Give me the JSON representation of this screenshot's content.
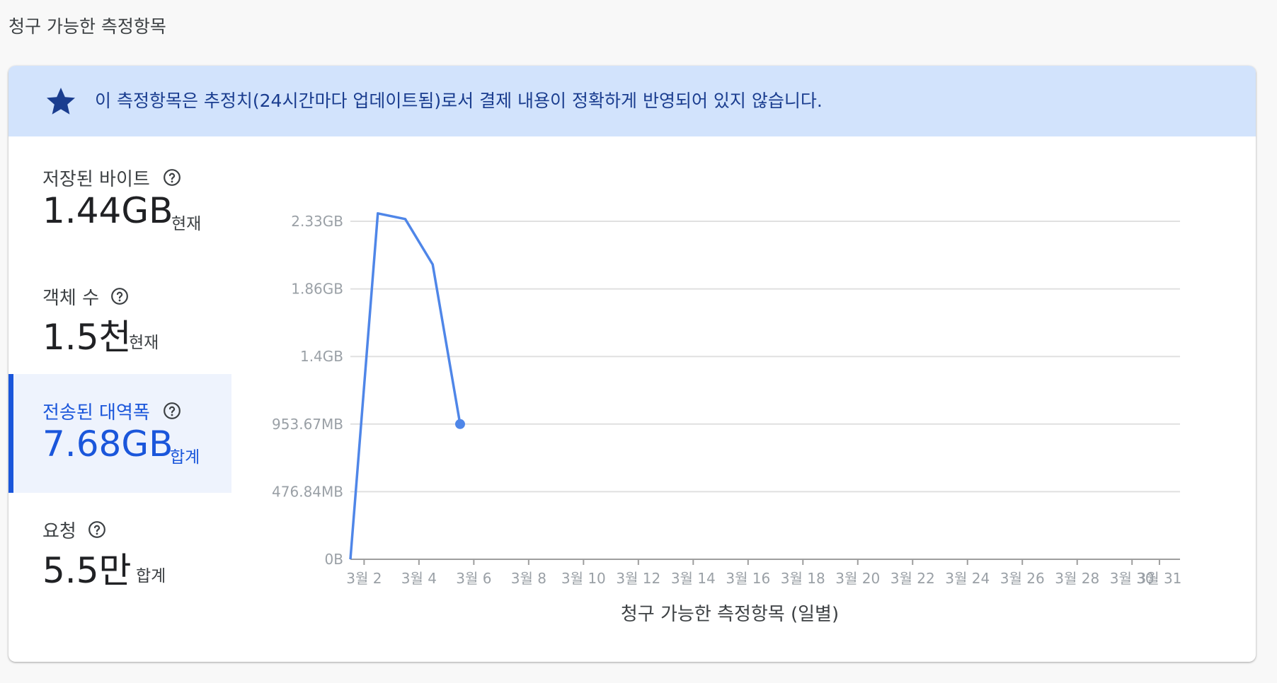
{
  "page": {
    "title": "청구 가능한 측정항목"
  },
  "banner": {
    "icon": "star-icon",
    "text": "이 측정항목은 추정치(24시간마다 업데이트됨)로서 결제 내용이 정확하게 반영되어 있지 않습니다.",
    "color": "#1a3d8f",
    "background": "#d2e3fc"
  },
  "metrics": [
    {
      "label": "저장된 바이트",
      "value": "1.44GB",
      "unit": "현재",
      "selected": false
    },
    {
      "label": "객체 수",
      "value": "1.5천",
      "unit": "현재",
      "selected": false
    },
    {
      "label": "전송된 대역폭",
      "value": "7.68GB",
      "unit": "합계",
      "selected": true
    },
    {
      "label": "요청",
      "value": "5.5만",
      "unit": "합계",
      "selected": false
    }
  ],
  "colors": {
    "accent": "#1a56db",
    "series": "#4f86e8"
  },
  "chart_data": {
    "type": "line",
    "xlabel": "청구 가능한 측정항목 (일별)",
    "ylabel": "",
    "y_tick_labels": [
      "0B",
      "476.84MB",
      "953.67MB",
      "1.4GB",
      "1.86GB",
      "2.33GB"
    ],
    "y_tick_values_mb": [
      0,
      476.84,
      953.67,
      1430.51,
      1907.35,
      2384.19
    ],
    "ylim_mb": [
      0,
      2384.19
    ],
    "x_tick_labels": [
      "3월 2",
      "3월 4",
      "3월 6",
      "3월 8",
      "3월 10",
      "3월 12",
      "3월 14",
      "3월 16",
      "3월 18",
      "3월 20",
      "3월 22",
      "3월 24",
      "3월 26",
      "3월 28",
      "3월 30",
      "3월 31"
    ],
    "x_tick_days": [
      2,
      4,
      6,
      8,
      10,
      12,
      14,
      16,
      18,
      20,
      22,
      24,
      26,
      28,
      30,
      31
    ],
    "xlim_days": [
      1.5,
      31.75
    ],
    "grid": true,
    "series": [
      {
        "x_days": [
          1.5,
          2.5,
          3.5,
          4.5,
          5.5
        ],
        "values_mb": [
          0,
          2440,
          2400,
          2080,
          953.67
        ]
      }
    ]
  }
}
